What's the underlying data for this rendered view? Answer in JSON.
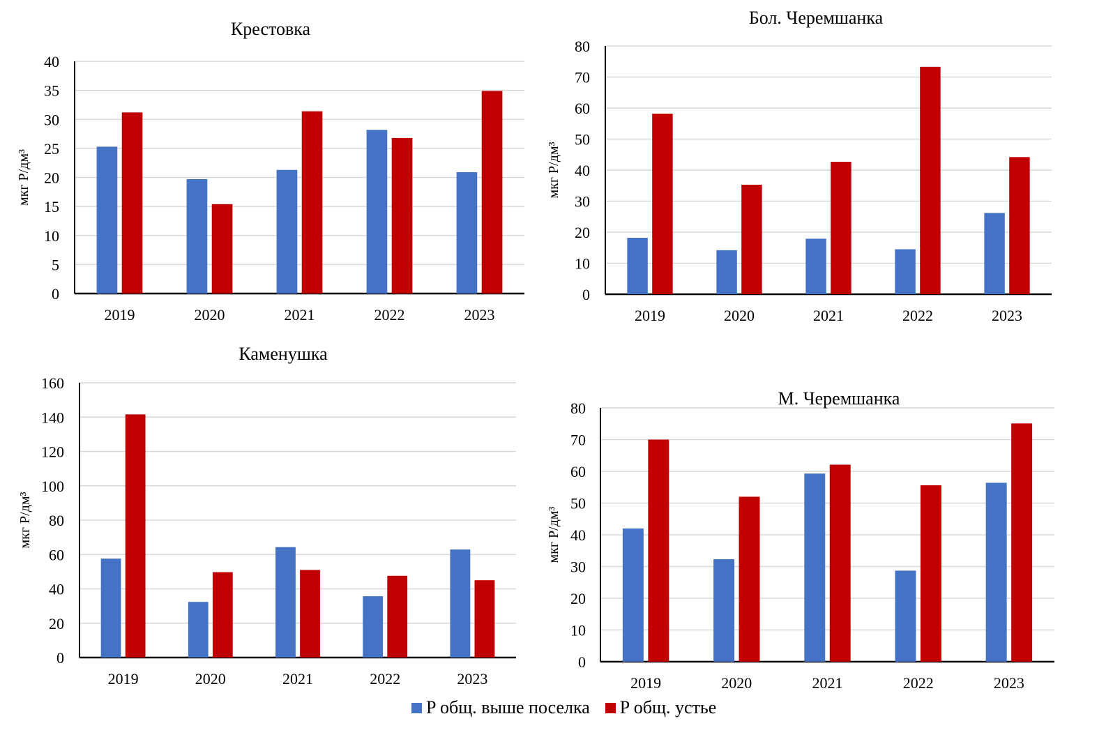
{
  "legend": {
    "items": [
      {
        "label": "P общ. выше поселка",
        "color": "#4472C4"
      },
      {
        "label": "P общ. устье",
        "color": "#C00000"
      }
    ]
  },
  "chart_data": [
    {
      "type": "bar",
      "title": "Крестовка",
      "xlabel": "",
      "ylabel": "мкг P/дм³",
      "categories": [
        "2019",
        "2020",
        "2021",
        "2022",
        "2023"
      ],
      "ylim": [
        0,
        40
      ],
      "yticks": [
        0,
        5,
        10,
        15,
        20,
        25,
        30,
        35,
        40
      ],
      "grid": true,
      "legend": "bottom",
      "series": [
        {
          "name": "P общ. выше поселка",
          "color": "#4472C4",
          "values": [
            25.3,
            19.7,
            21.3,
            28.2,
            20.9
          ]
        },
        {
          "name": "P общ. устье",
          "color": "#C00000",
          "values": [
            31.2,
            15.4,
            31.4,
            26.8,
            34.9
          ]
        }
      ]
    },
    {
      "type": "bar",
      "title": "Бол. Черемшанка",
      "xlabel": "",
      "ylabel": "мкг P/дм³",
      "categories": [
        "2019",
        "2020",
        "2021",
        "2022",
        "2023"
      ],
      "ylim": [
        0,
        80
      ],
      "yticks": [
        0,
        10,
        20,
        30,
        40,
        50,
        60,
        70,
        80
      ],
      "grid": true,
      "legend": "bottom",
      "series": [
        {
          "name": "P общ. выше поселка",
          "color": "#4472C4",
          "values": [
            18.2,
            14.2,
            17.9,
            14.5,
            26.2
          ]
        },
        {
          "name": "P общ. устье",
          "color": "#C00000",
          "values": [
            58.2,
            35.3,
            42.7,
            73.3,
            44.2
          ]
        }
      ]
    },
    {
      "type": "bar",
      "title": "Каменушка",
      "xlabel": "",
      "ylabel": "мкг P/дм³",
      "categories": [
        "2019",
        "2020",
        "2021",
        "2022",
        "2023"
      ],
      "ylim": [
        0,
        160
      ],
      "yticks": [
        0,
        20,
        40,
        60,
        80,
        100,
        120,
        140,
        160
      ],
      "grid": true,
      "legend": "bottom",
      "series": [
        {
          "name": "P общ. выше поселка",
          "color": "#4472C4",
          "values": [
            57.6,
            32.4,
            64.3,
            35.7,
            62.9
          ]
        },
        {
          "name": "P общ. устье",
          "color": "#C00000",
          "values": [
            141.6,
            49.7,
            51.0,
            47.6,
            45.0
          ]
        }
      ]
    },
    {
      "type": "bar",
      "title": "М. Черемшанка",
      "xlabel": "",
      "ylabel": "мкг P/дм³",
      "categories": [
        "2019",
        "2020",
        "2021",
        "2022",
        "2023"
      ],
      "ylim": [
        0,
        80
      ],
      "yticks": [
        0,
        10,
        20,
        30,
        40,
        50,
        60,
        70,
        80
      ],
      "grid": true,
      "legend": "bottom",
      "series": [
        {
          "name": "P общ. выше поселка",
          "color": "#4472C4",
          "values": [
            42.0,
            32.3,
            59.3,
            28.7,
            56.4
          ]
        },
        {
          "name": "P общ. устье",
          "color": "#C00000",
          "values": [
            70.0,
            52.0,
            62.1,
            55.6,
            75.1
          ]
        }
      ]
    }
  ]
}
